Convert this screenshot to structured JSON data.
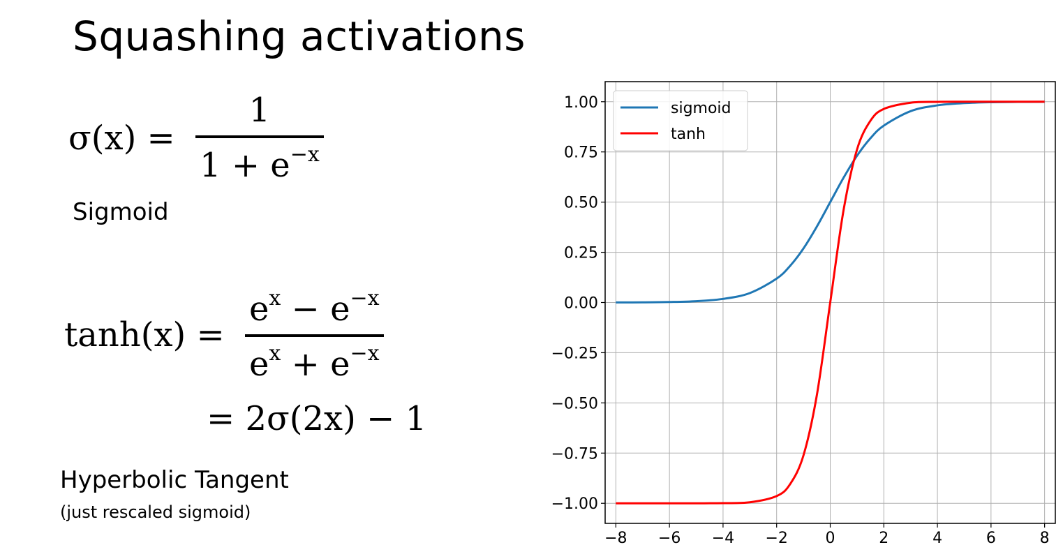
{
  "slide": {
    "title": "Squashing activations",
    "sigmoid_formula": {
      "lhs": "σ(x) =",
      "numerator": "1",
      "denominator_base": "1 + e",
      "denominator_exp": "−x"
    },
    "sigmoid_label": "Sigmoid",
    "tanh_formula": {
      "lhs": "tanh(x) =",
      "num_a": "e",
      "num_a_exp": "x",
      "num_op": " − e",
      "num_b_exp": "−x",
      "den_a": "e",
      "den_a_exp": "x",
      "den_op": " + e",
      "den_b_exp": "−x",
      "identity": "= 2σ(2x) − 1"
    },
    "tanh_label": "Hyperbolic Tangent",
    "tanh_note": "(just rescaled sigmoid)"
  },
  "chart_data": {
    "type": "line",
    "title": "",
    "xlabel": "",
    "ylabel": "",
    "xlim": [
      -8.4,
      8.4
    ],
    "ylim": [
      -1.1,
      1.1
    ],
    "x_ticks": [
      -8,
      -6,
      -4,
      -2,
      0,
      2,
      4,
      6,
      8
    ],
    "x_tick_labels": [
      "−8",
      "−6",
      "−4",
      "−2",
      "0",
      "2",
      "4",
      "6",
      "8"
    ],
    "y_ticks": [
      1.0,
      0.75,
      0.5,
      0.25,
      0.0,
      -0.25,
      -0.5,
      -0.75,
      -1.0
    ],
    "y_tick_labels": [
      "1.00",
      "0.75",
      "0.50",
      "0.25",
      "0.00",
      "−0.25",
      "−0.50",
      "−0.75",
      "−1.00"
    ],
    "grid": true,
    "legend_position": "top-left",
    "x": [
      -8,
      -7,
      -6,
      -5,
      -4,
      -3,
      -2,
      -1.5,
      -1,
      -0.5,
      0,
      0.5,
      1,
      1.5,
      2,
      3,
      4,
      5,
      6,
      7,
      8
    ],
    "series": [
      {
        "name": "sigmoid",
        "color": "#1f77b4",
        "values": [
          0.0003,
          0.0009,
          0.0025,
          0.0067,
          0.018,
          0.047,
          0.119,
          0.182,
          0.269,
          0.378,
          0.5,
          0.622,
          0.731,
          0.818,
          0.881,
          0.953,
          0.982,
          0.993,
          0.9975,
          0.9991,
          0.9997
        ]
      },
      {
        "name": "tanh",
        "color": "#ff0000",
        "values": [
          -1.0,
          -1.0,
          -1.0,
          -0.9999,
          -0.9993,
          -0.995,
          -0.964,
          -0.905,
          -0.762,
          -0.462,
          0.0,
          0.462,
          0.762,
          0.905,
          0.964,
          0.995,
          0.9993,
          0.9999,
          1.0,
          1.0,
          1.0
        ]
      }
    ]
  }
}
